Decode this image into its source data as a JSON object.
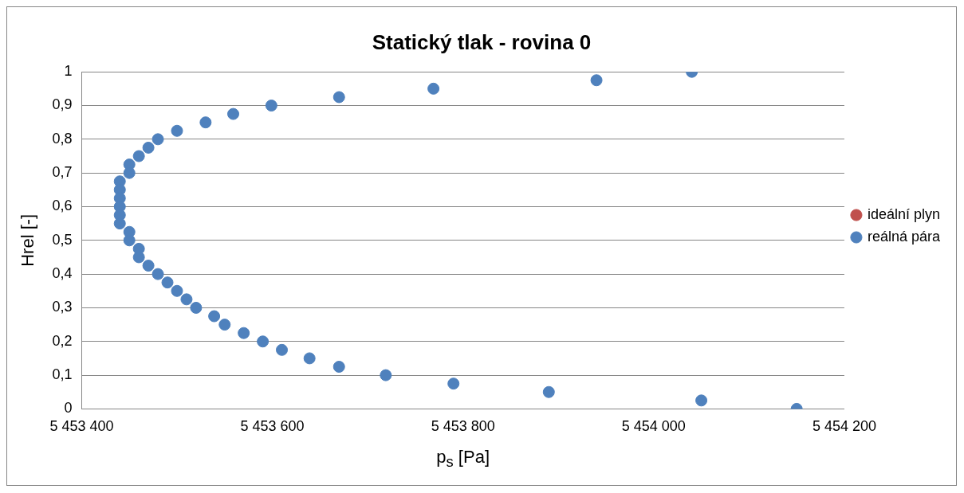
{
  "chart_data": {
    "type": "scatter",
    "title": "Statický tlak - rovina 0",
    "xlabel": "p$_{s}$ [Pa]",
    "ylabel": "Hrel [-]",
    "x": [
      5454040,
      5453940,
      5453769,
      5453670,
      5453599,
      5453559,
      5453530,
      5453500,
      5453480,
      5453470,
      5453460,
      5453450,
      5453450,
      5453440,
      5453440,
      5453440,
      5453440,
      5453440,
      5453440,
      5453450,
      5453450,
      5453460,
      5453460,
      5453470,
      5453480,
      5453490,
      5453500,
      5453510,
      5453520,
      5453539,
      5453550,
      5453570,
      5453590,
      5453610,
      5453639,
      5453670,
      5453719,
      5453790,
      5453890,
      5454050,
      5454150
    ],
    "series": [
      {
        "name": "ideální plyn",
        "color": "#c0504d",
        "values": [
          null,
          null,
          null,
          null,
          null,
          null,
          null,
          null,
          null,
          null,
          null,
          null,
          null,
          null,
          null,
          null,
          null,
          null,
          null,
          null,
          null,
          null,
          null,
          null,
          null,
          null,
          null,
          null,
          null,
          null,
          null,
          null,
          null,
          null,
          null,
          null,
          null,
          null,
          null,
          null,
          null
        ]
      },
      {
        "name": "reálná pára",
        "color": "#4f81bd",
        "values": [
          1,
          0.975,
          0.95,
          0.925,
          0.9,
          0.875,
          0.85,
          0.825,
          0.8,
          0.775,
          0.75,
          0.725,
          0.7,
          0.675,
          0.65,
          0.625,
          0.6,
          0.575,
          0.55,
          0.525,
          0.5,
          0.475,
          0.45,
          0.425,
          0.4,
          0.375,
          0.35,
          0.325,
          0.3,
          0.275,
          0.25,
          0.225,
          0.2,
          0.175,
          0.15,
          0.125,
          0.1,
          0.075,
          0.05,
          0.025,
          0
        ]
      }
    ],
    "xlim": [
      5453400,
      5454200
    ],
    "xticks": [
      {
        "value": 5453400,
        "label": "5 453 400"
      },
      {
        "value": 5453600,
        "label": "5 453 600"
      },
      {
        "value": 5453800,
        "label": "5 453 800"
      },
      {
        "value": 5454000,
        "label": "5 454 000"
      },
      {
        "value": 5454200,
        "label": "5 454 200"
      }
    ],
    "ylim": [
      0,
      1
    ],
    "yticks": [
      0,
      {
        "value": 0.1,
        "label": "0,1"
      },
      {
        "value": 0.2,
        "label": "0,2"
      },
      {
        "value": 0.3,
        "label": "0,3"
      },
      {
        "value": 0.4,
        "label": "0,4"
      },
      {
        "value": 0.5,
        "label": "0,5"
      },
      {
        "value": 0.6,
        "label": "0,6"
      },
      {
        "value": 0.7,
        "label": "0,7"
      },
      {
        "value": 0.8,
        "label": "0,8"
      },
      {
        "value": 0.9,
        "label": "0,9"
      },
      1
    ],
    "grid": "y",
    "legend": "right",
    "marker": "circle"
  }
}
